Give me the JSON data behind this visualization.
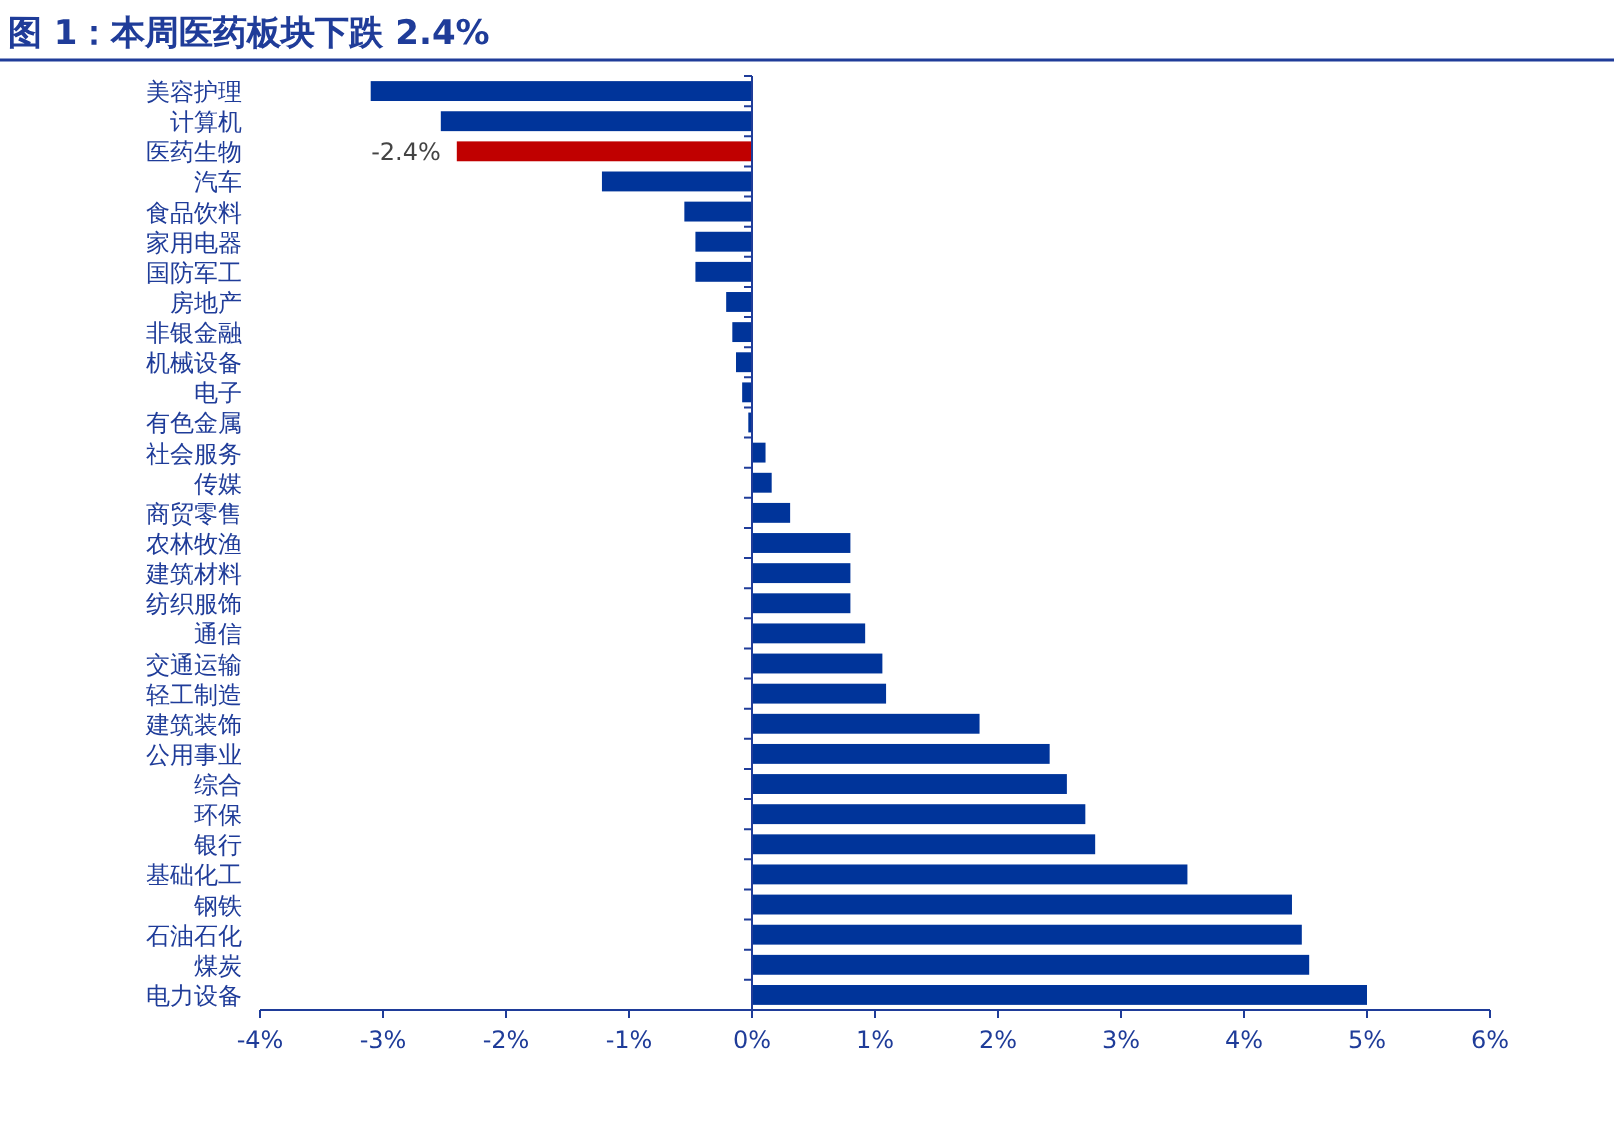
{
  "chart_data": {
    "type": "bar",
    "orientation": "horizontal",
    "title": "图 1：本周医药板块下跌 2.4%",
    "categories": [
      "美容护理",
      "计算机",
      "医药生物",
      "汽车",
      "食品饮料",
      "家用电器",
      "国防军工",
      "房地产",
      "非银金融",
      "机械设备",
      "电子",
      "有色金属",
      "社会服务",
      "传媒",
      "商贸零售",
      "农林牧渔",
      "建筑材料",
      "纺织服饰",
      "通信",
      "交通运输",
      "轻工制造",
      "建筑装饰",
      "公用事业",
      "综合",
      "环保",
      "银行",
      "基础化工",
      "钢铁",
      "石油石化",
      "煤炭",
      "电力设备"
    ],
    "values": [
      -3.1,
      -2.53,
      -2.4,
      -1.22,
      -0.55,
      -0.46,
      -0.46,
      -0.21,
      -0.16,
      -0.13,
      -0.08,
      -0.03,
      0.11,
      0.16,
      0.31,
      0.8,
      0.8,
      0.8,
      0.92,
      1.06,
      1.09,
      1.85,
      2.42,
      2.56,
      2.71,
      2.79,
      3.54,
      4.39,
      4.47,
      4.53,
      5.0
    ],
    "value_labels": [
      null,
      null,
      "-2.4%",
      null,
      null,
      null,
      null,
      null,
      null,
      null,
      null,
      null,
      null,
      null,
      null,
      null,
      null,
      null,
      null,
      null,
      null,
      null,
      null,
      null,
      null,
      null,
      null,
      null,
      null,
      null,
      null
    ],
    "colors": [
      "#00349a",
      "#00349a",
      "#c00000",
      "#00349a",
      "#00349a",
      "#00349a",
      "#00349a",
      "#00349a",
      "#00349a",
      "#00349a",
      "#00349a",
      "#00349a",
      "#00349a",
      "#00349a",
      "#00349a",
      "#00349a",
      "#00349a",
      "#00349a",
      "#00349a",
      "#00349a",
      "#00349a",
      "#00349a",
      "#00349a",
      "#00349a",
      "#00349a",
      "#00349a",
      "#00349a",
      "#00349a",
      "#00349a",
      "#00349a",
      "#00349a"
    ],
    "xlim": [
      -4,
      6
    ],
    "xticks": [
      {
        "value": -4,
        "label": "-4%"
      },
      {
        "value": -3,
        "label": "-3%"
      },
      {
        "value": -2,
        "label": "-2%"
      },
      {
        "value": -1,
        "label": "-1%"
      },
      {
        "value": 0,
        "label": "0%"
      },
      {
        "value": 1,
        "label": "1%"
      },
      {
        "value": 2,
        "label": "2%"
      },
      {
        "value": 3,
        "label": "3%"
      },
      {
        "value": 4,
        "label": "4%"
      },
      {
        "value": 5,
        "label": "5%"
      },
      {
        "value": 6,
        "label": "6%"
      }
    ],
    "ref_lines": [
      {
        "axis": "x",
        "value": 0,
        "color": "#1f3c99"
      }
    ],
    "grid": false,
    "legend": false
  }
}
